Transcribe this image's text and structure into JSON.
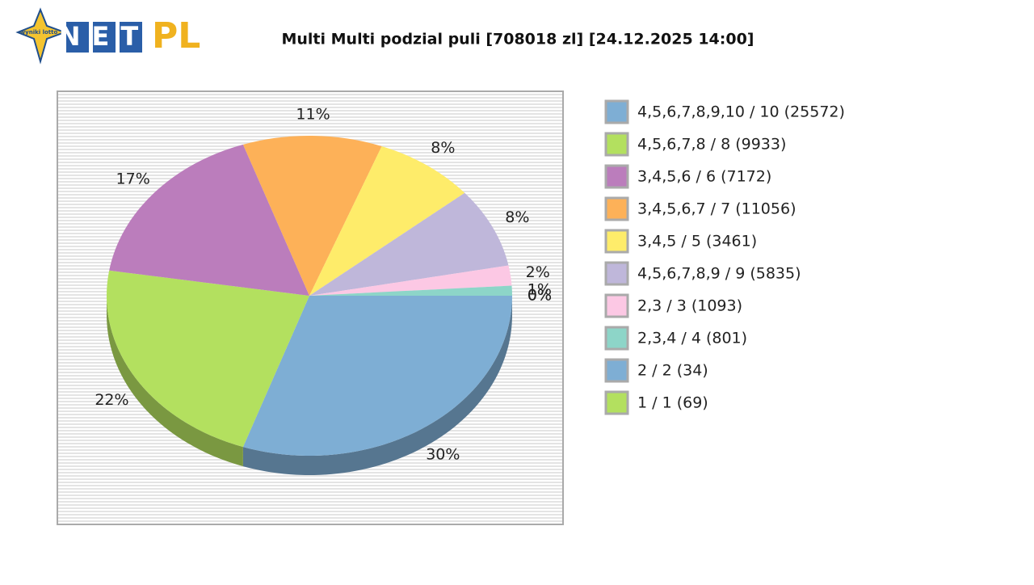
{
  "logo": {
    "badge": "wyniki lotto",
    "net": "NET",
    "pl": "PL"
  },
  "chart_data": {
    "type": "pie",
    "title": "Multi Multi podzial puli [708018 zl] [24.12.2025 14:00]",
    "categories": [
      "4,5,6,7,8,9,10 / 10 (25572)",
      "4,5,6,7,8 / 8 (9933)",
      "3,4,5,6 / 6 (7172)",
      "3,4,5,6,7 / 7 (11056)",
      "3,4,5 / 5 (3461)",
      "4,5,6,7,8,9 / 9 (5835)",
      "2,3 / 3 (1093)",
      "2,3,4 / 4 (801)",
      "2 / 2 (34)",
      "1 / 1 (69)"
    ],
    "values": [
      30,
      22,
      17,
      11,
      8,
      8,
      2,
      1,
      0,
      0
    ],
    "value_labels": [
      "30%",
      "22%",
      "17%",
      "11%",
      "8%",
      "8%",
      "2%",
      "1%",
      "0%",
      "0%"
    ],
    "colors": [
      "#7eaed4",
      "#b3e05f",
      "#bb7dbc",
      "#fdb158",
      "#feec6a",
      "#bfb7da",
      "#fcc8e4",
      "#8dd5c8",
      "#7eaed4",
      "#b3e05f"
    ],
    "legend": "right"
  }
}
